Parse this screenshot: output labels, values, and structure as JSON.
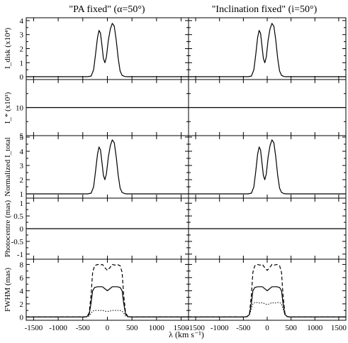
{
  "chart_data": {
    "type": "line",
    "columns": [
      {
        "title": "\"PA fixed\" (α=50°)"
      },
      {
        "title": "\"Inclination fixed\" (i=50°)"
      }
    ],
    "xlabel": "λ (km s⁻¹)",
    "xlim": [
      -1650,
      1650
    ],
    "xticks": [
      -1500,
      -1000,
      -500,
      0,
      500,
      1000,
      1500
    ],
    "grid": false,
    "panels": [
      {
        "ylabel": "I_disk (x10⁴)",
        "ylim": [
          -0.2,
          4.2
        ],
        "yticks": [
          0,
          1,
          2,
          3,
          4
        ],
        "series": [
          {
            "style": "solid",
            "x": [
              -1650,
              -400,
              -330,
              -280,
              -240,
              -200,
              -170,
              -140,
              -110,
              -80,
              -50,
              -20,
              20,
              60,
              100,
              140,
              180,
              220,
              260,
              300,
              350,
              400,
              1650
            ],
            "y": [
              0,
              0,
              0.05,
              0.5,
              1.6,
              2.8,
              3.3,
              3.1,
              2.2,
              1.3,
              1.0,
              1.4,
              2.6,
              3.4,
              3.8,
              3.6,
              2.6,
              1.3,
              0.4,
              0.1,
              0.02,
              0,
              0
            ]
          }
        ]
      },
      {
        "ylabel": "I_* (x10³)",
        "ylim": [
          5,
          15
        ],
        "yticks": [
          5,
          10
        ],
        "series": [
          {
            "style": "solid",
            "x": [
              -1650,
              1650
            ],
            "y": [
              10,
              10
            ]
          }
        ]
      },
      {
        "ylabel": "Normalized I_total",
        "ylim": [
          0.7,
          5.1
        ],
        "yticks": [
          1,
          2,
          3,
          4,
          5
        ],
        "series": [
          {
            "style": "solid",
            "x": [
              -1650,
              -400,
              -330,
              -280,
              -240,
              -200,
              -170,
              -140,
              -110,
              -80,
              -50,
              -20,
              20,
              60,
              100,
              140,
              180,
              220,
              260,
              300,
              350,
              400,
              1650
            ],
            "y": [
              1,
              1,
              1.05,
              1.5,
              2.6,
              3.8,
              4.3,
              4.1,
              3.2,
              2.3,
              2.0,
              2.4,
              3.6,
              4.4,
              4.8,
              4.6,
              3.6,
              2.3,
              1.4,
              1.1,
              1.02,
              1,
              1
            ]
          }
        ]
      },
      {
        "ylabel": "Photocentre (mas)",
        "ylim": [
          -1.2,
          1.2
        ],
        "yticks": [
          -1,
          -0.5,
          0,
          0.5,
          1
        ],
        "series": [
          {
            "style": "solid",
            "x": [
              -1650,
              1650
            ],
            "y": [
              0,
              0
            ]
          }
        ]
      },
      {
        "ylabel": "FWHM (mas)",
        "ylim": [
          -0.5,
          8.8
        ],
        "yticks": [
          0,
          2,
          4,
          6,
          8
        ],
        "series": [
          {
            "style": "dashed",
            "x": [
              -1650,
              -500,
              -420,
              -370,
              -330,
              -300,
              -260,
              -200,
              -150,
              -100,
              -50,
              0,
              50,
              100,
              150,
              200,
              260,
              300,
              330,
              370,
              420,
              500,
              1650
            ],
            "y": [
              0,
              0,
              0.05,
              0.6,
              3.5,
              6.8,
              7.8,
              8.0,
              7.9,
              8.0,
              7.5,
              7.1,
              7.5,
              8.0,
              7.9,
              8.0,
              7.8,
              6.8,
              3.5,
              0.6,
              0.05,
              0,
              0
            ]
          },
          {
            "style": "solid",
            "x": [
              -1650,
              -500,
              -420,
              -370,
              -330,
              -300,
              -260,
              -200,
              -150,
              -100,
              -50,
              0,
              50,
              100,
              150,
              200,
              260,
              300,
              330,
              370,
              420,
              500,
              1650
            ],
            "y": [
              0,
              0,
              0.05,
              0.4,
              2.2,
              4.0,
              4.5,
              4.6,
              4.6,
              4.6,
              4.3,
              4.0,
              4.3,
              4.6,
              4.6,
              4.6,
              4.5,
              4.0,
              2.2,
              0.4,
              0.05,
              0,
              0
            ]
          },
          {
            "style": "dotted",
            "x": [
              -1650,
              -500,
              -420,
              -370,
              -330,
              -300,
              -260,
              -200,
              -150,
              -100,
              -50,
              0,
              50,
              100,
              150,
              200,
              260,
              300,
              330,
              370,
              420,
              500,
              1650
            ],
            "y": [
              0,
              0,
              0.02,
              0.15,
              0.6,
              0.9,
              1.0,
              1.0,
              1.0,
              1.0,
              0.9,
              0.85,
              0.9,
              1.0,
              1.0,
              1.0,
              1.0,
              0.9,
              0.6,
              0.15,
              0.02,
              0,
              0
            ]
          }
        ]
      }
    ],
    "panel_overrides": {
      "1-4": {
        "series": [
          {
            "style": "dashed",
            "x": [
              -1650,
              -500,
              -420,
              -370,
              -330,
              -300,
              -260,
              -200,
              -150,
              -100,
              -50,
              0,
              50,
              100,
              150,
              200,
              260,
              300,
              330,
              370,
              420,
              500,
              1650
            ],
            "y": [
              0,
              0,
              0.05,
              0.6,
              3.5,
              6.8,
              7.8,
              8.0,
              7.9,
              8.0,
              7.5,
              7.1,
              7.5,
              8.0,
              7.9,
              8.0,
              7.8,
              6.8,
              3.5,
              0.6,
              0.05,
              0,
              0
            ]
          },
          {
            "style": "solid",
            "x": [
              -1650,
              -500,
              -420,
              -370,
              -330,
              -300,
              -260,
              -200,
              -150,
              -100,
              -50,
              0,
              50,
              100,
              150,
              200,
              260,
              300,
              330,
              370,
              420,
              500,
              1650
            ],
            "y": [
              0,
              0,
              0.05,
              0.4,
              2.2,
              4.0,
              4.5,
              4.6,
              4.6,
              4.6,
              4.3,
              4.0,
              4.3,
              4.6,
              4.6,
              4.6,
              4.5,
              4.0,
              2.2,
              0.4,
              0.05,
              0,
              0
            ]
          },
          {
            "style": "dotted",
            "x": [
              -1650,
              -500,
              -420,
              -370,
              -330,
              -300,
              -260,
              -200,
              -150,
              -100,
              -50,
              0,
              50,
              100,
              150,
              200,
              260,
              300,
              330,
              370,
              420,
              500,
              1650
            ],
            "y": [
              0,
              0,
              0.05,
              0.4,
              1.3,
              2.0,
              2.2,
              2.2,
              2.1,
              2.2,
              2.0,
              1.9,
              2.0,
              2.2,
              2.1,
              2.2,
              2.2,
              2.0,
              1.3,
              0.4,
              0.05,
              0,
              0
            ]
          }
        ]
      }
    }
  }
}
